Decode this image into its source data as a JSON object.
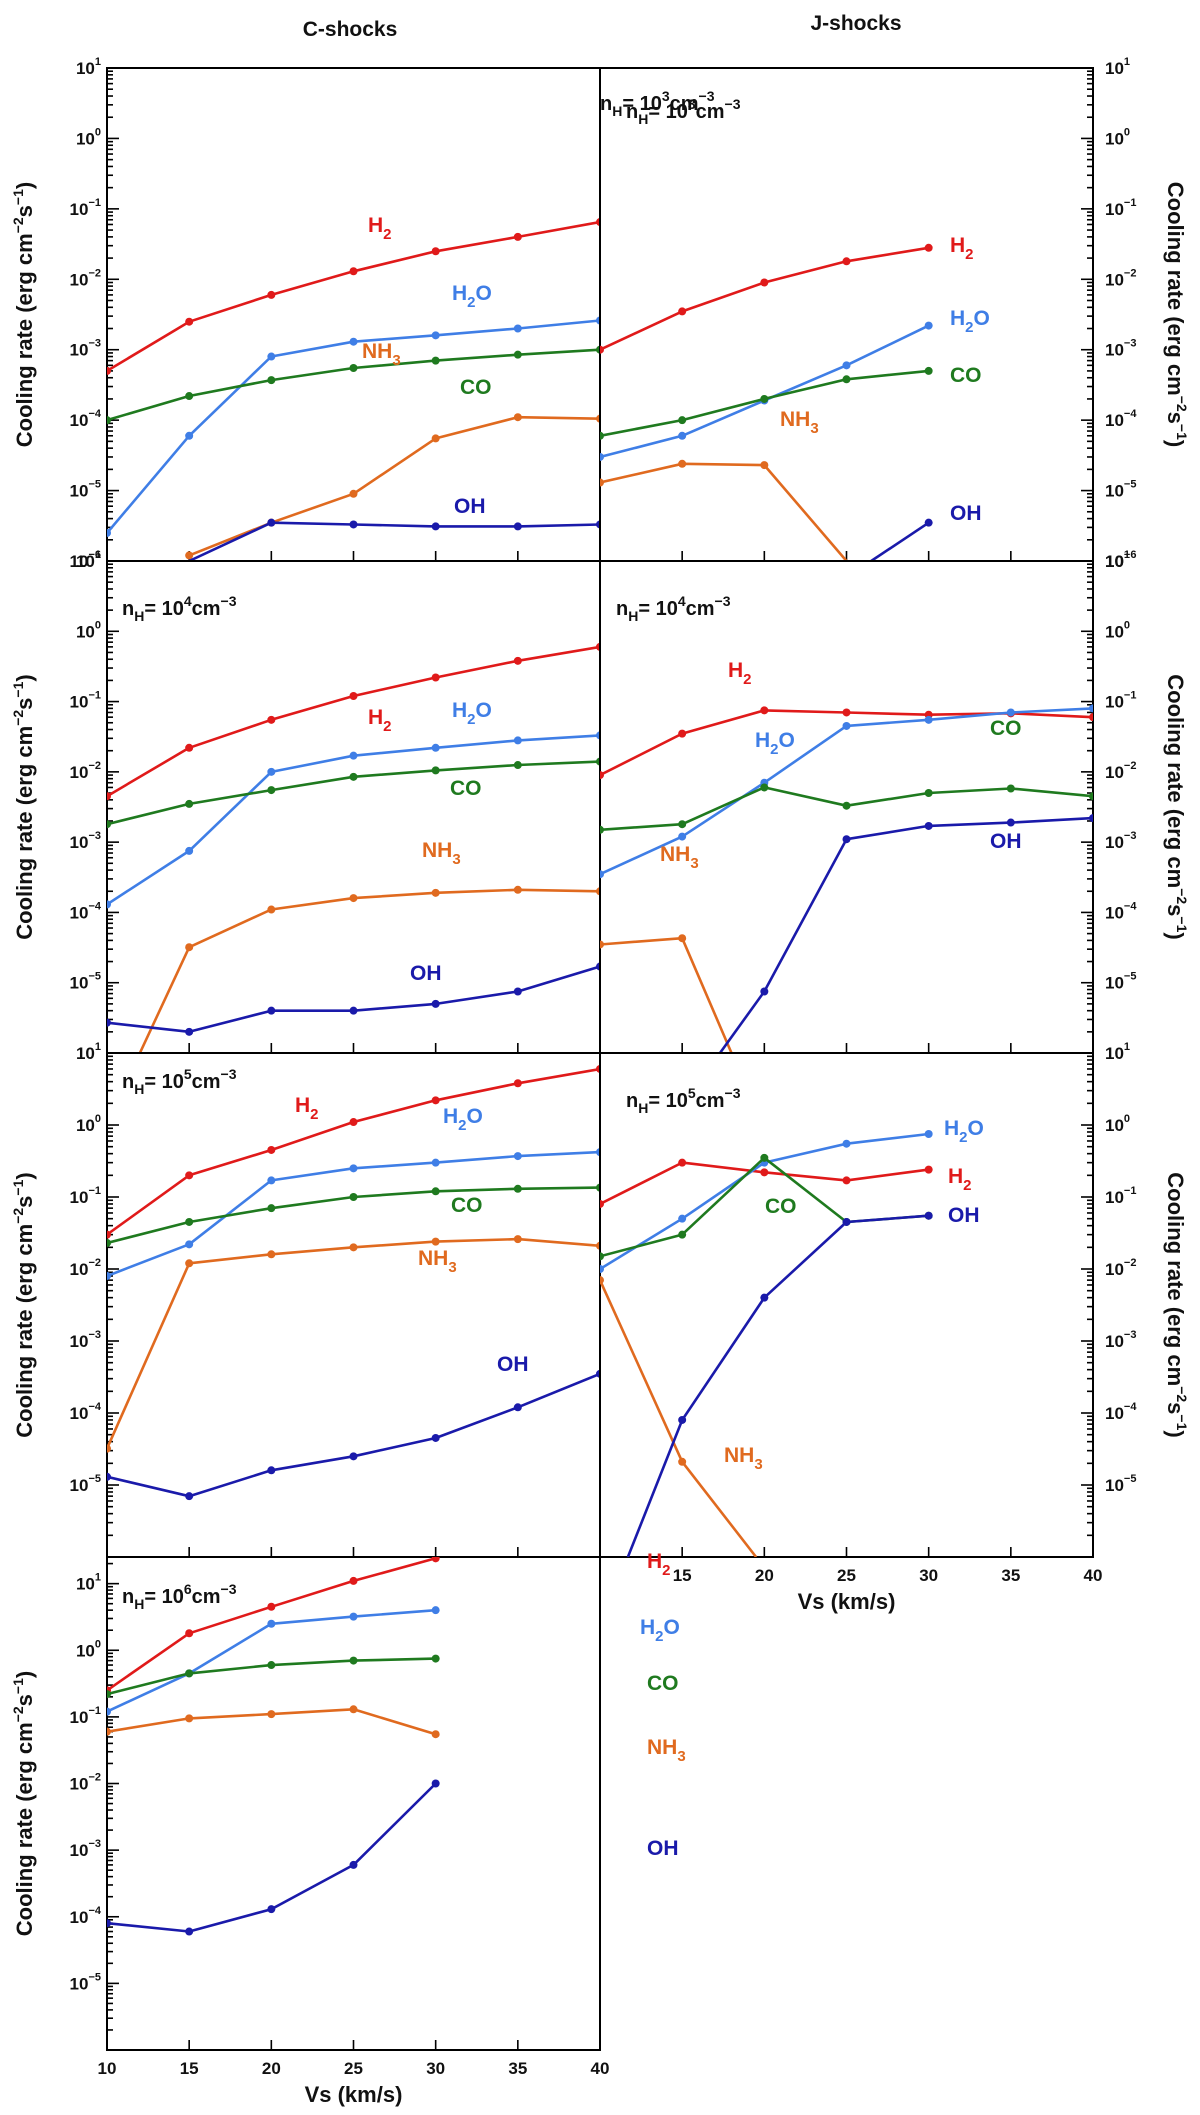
{
  "figure": {
    "columns": [
      "C-shocks",
      "J-shocks"
    ],
    "xlabel": "Vs (km/s)",
    "ylabel": "Cooling rate (erg cm-2 s-1)",
    "ylabel_parts": [
      "Cooling rate (erg cm",
      "-2",
      "s",
      "-1",
      ")"
    ],
    "y_tick_base": "10",
    "colors": {
      "H2": "#e01a1a",
      "H2O": "#3f7ee6",
      "CO": "#1f7a1f",
      "NH3": "#e06a1f",
      "OH": "#1a1aaa"
    }
  },
  "chart_data": [
    {
      "id": "c3",
      "type": "line",
      "column": "C-shocks",
      "density": {
        "pre": "n",
        "sub": "H",
        "eq": "= 10",
        "exp": "3",
        "unit": "cm",
        "unit_exp": "-3"
      },
      "xlim": [
        10,
        40
      ],
      "ylim_log10": [
        -6,
        1
      ],
      "x_ticks": [],
      "y_ticks_exp": [
        1,
        0,
        -1,
        -2,
        -3,
        -4,
        -5,
        -6
      ],
      "series": [
        {
          "name": "H2",
          "label": "H",
          "label_sub": "2",
          "x": [
            10,
            15,
            20,
            25,
            30,
            35,
            40
          ],
          "values": [
            0.0005,
            0.0025,
            0.006,
            0.013,
            0.025,
            0.04,
            0.065
          ]
        },
        {
          "name": "H2O",
          "label": "H",
          "label_sub": "2",
          "label_tail": "O",
          "x": [
            10,
            15,
            20,
            25,
            30,
            35,
            40
          ],
          "values": [
            2.5e-06,
            6e-05,
            0.0008,
            0.0013,
            0.0016,
            0.002,
            0.0026
          ]
        },
        {
          "name": "CO",
          "label": "CO",
          "x": [
            10,
            15,
            20,
            25,
            30,
            35,
            40
          ],
          "values": [
            0.0001,
            0.00022,
            0.00037,
            0.00055,
            0.0007,
            0.00085,
            0.001
          ]
        },
        {
          "name": "NH3",
          "label": "NH",
          "label_sub": "3",
          "x": [
            15,
            20,
            25,
            30,
            35,
            40
          ],
          "values": [
            1.2e-06,
            3.5e-06,
            9e-06,
            5.5e-05,
            0.00011,
            0.000105
          ]
        },
        {
          "name": "OH",
          "label": "OH",
          "x": [
            15,
            20,
            25,
            30,
            35,
            40
          ],
          "values": [
            1e-06,
            3.5e-06,
            3.3e-06,
            3.1e-06,
            3.1e-06,
            3.3e-06
          ]
        }
      ]
    },
    {
      "id": "j3",
      "type": "line",
      "column": "J-shocks",
      "density": {
        "pre": "n",
        "sub": "H",
        "eq": "= 10",
        "exp": "3",
        "unit": "cm",
        "unit_exp": "-3"
      },
      "xlim": [
        10,
        40
      ],
      "ylim_log10": [
        -6,
        1
      ],
      "x_ticks": [],
      "y_ticks_exp": [
        1,
        0,
        -1,
        -2,
        -3,
        -4,
        -5,
        -6
      ],
      "series": [
        {
          "name": "H2",
          "label": "H",
          "label_sub": "2",
          "x": [
            10,
            15,
            20,
            25,
            30
          ],
          "values": [
            0.001,
            0.0035,
            0.009,
            0.018,
            0.028
          ]
        },
        {
          "name": "H2O",
          "label": "H",
          "label_sub": "2",
          "label_tail": "O",
          "x": [
            10,
            15,
            20,
            25,
            30
          ],
          "values": [
            3e-05,
            6e-05,
            0.00019,
            0.0006,
            0.0022
          ]
        },
        {
          "name": "CO",
          "label": "CO",
          "x": [
            10,
            15,
            20,
            25,
            30
          ],
          "values": [
            6e-05,
            0.0001,
            0.0002,
            0.00038,
            0.0005
          ]
        },
        {
          "name": "NH3",
          "label": "NH",
          "label_sub": "3",
          "x": [
            10,
            15,
            20,
            25
          ],
          "values": [
            1.3e-05,
            2.4e-05,
            2.3e-05,
            1e-06
          ]
        },
        {
          "name": "OH",
          "label": "OH",
          "x": [
            26.5,
            30
          ],
          "values": [
            1e-06,
            3.5e-06
          ]
        }
      ]
    },
    {
      "id": "c4",
      "type": "line",
      "column": "C-shocks",
      "density": {
        "pre": "n",
        "sub": "H",
        "eq": "= 10",
        "exp": "4",
        "unit": "cm",
        "unit_exp": "-3"
      },
      "xlim": [
        10,
        40
      ],
      "ylim_log10": [
        -6,
        1
      ],
      "x_ticks": [],
      "y_ticks_exp": [
        1,
        0,
        -1,
        -2,
        -3,
        -4,
        -5
      ],
      "series": [
        {
          "name": "H2",
          "label": "H",
          "label_sub": "2",
          "x": [
            10,
            15,
            20,
            25,
            30,
            35,
            40
          ],
          "values": [
            0.0045,
            0.022,
            0.055,
            0.12,
            0.22,
            0.38,
            0.6
          ]
        },
        {
          "name": "H2O",
          "label": "H",
          "label_sub": "2",
          "label_tail": "O",
          "x": [
            10,
            15,
            20,
            25,
            30,
            35,
            40
          ],
          "values": [
            0.00013,
            0.00075,
            0.01,
            0.017,
            0.022,
            0.028,
            0.033
          ]
        },
        {
          "name": "CO",
          "label": "CO",
          "x": [
            10,
            15,
            20,
            25,
            30,
            35,
            40
          ],
          "values": [
            0.0018,
            0.0035,
            0.0055,
            0.0085,
            0.0105,
            0.0125,
            0.014
          ]
        },
        {
          "name": "NH3",
          "label": "NH",
          "label_sub": "3",
          "x": [
            12,
            15,
            20,
            25,
            30,
            35,
            40
          ],
          "values": [
            1e-06,
            3.2e-05,
            0.00011,
            0.00016,
            0.00019,
            0.00021,
            0.0002
          ]
        },
        {
          "name": "OH",
          "label": "OH",
          "x": [
            10,
            15,
            20,
            25,
            30,
            35,
            40
          ],
          "values": [
            2.7e-06,
            2e-06,
            4e-06,
            4e-06,
            5e-06,
            7.5e-06,
            1.7e-05
          ]
        }
      ]
    },
    {
      "id": "j4",
      "type": "line",
      "column": "J-shocks",
      "density": {
        "pre": "n",
        "sub": "H",
        "eq": "= 10",
        "exp": "4",
        "unit": "cm",
        "unit_exp": "-3"
      },
      "xlim": [
        10,
        40
      ],
      "ylim_log10": [
        -6,
        1
      ],
      "x_ticks": [],
      "y_ticks_exp": [
        1,
        0,
        -1,
        -2,
        -3,
        -4,
        -5
      ],
      "series": [
        {
          "name": "H2",
          "label": "H",
          "label_sub": "2",
          "x": [
            10,
            15,
            20,
            25,
            30,
            35,
            40
          ],
          "values": [
            0.009,
            0.035,
            0.075,
            0.07,
            0.065,
            0.068,
            0.06
          ]
        },
        {
          "name": "H2O",
          "label": "H",
          "label_sub": "2",
          "label_tail": "O",
          "x": [
            10,
            15,
            20,
            25,
            30,
            35,
            40
          ],
          "values": [
            0.00035,
            0.0012,
            0.007,
            0.045,
            0.055,
            0.07,
            0.08
          ]
        },
        {
          "name": "CO",
          "label": "CO",
          "x": [
            10,
            15,
            20,
            25,
            30,
            35,
            40
          ],
          "values": [
            0.0015,
            0.0018,
            0.006,
            0.0033,
            0.005,
            0.0058,
            0.0045
          ]
        },
        {
          "name": "NH3",
          "label": "NH",
          "label_sub": "3",
          "x": [
            10,
            15,
            18
          ],
          "values": [
            3.5e-05,
            4.3e-05,
            1e-06
          ]
        },
        {
          "name": "OH",
          "label": "OH",
          "x": [
            17.3,
            20,
            25,
            30,
            35,
            40
          ],
          "values": [
            1e-06,
            7.5e-06,
            0.0011,
            0.0017,
            0.0019,
            0.0022
          ]
        }
      ]
    },
    {
      "id": "c5",
      "type": "line",
      "column": "C-shocks",
      "density": {
        "pre": "n",
        "sub": "H",
        "eq": "= 10",
        "exp": "5",
        "unit": "cm",
        "unit_exp": "-3"
      },
      "xlim": [
        10,
        40
      ],
      "ylim_log10": [
        -6,
        1
      ],
      "x_ticks": [],
      "y_ticks_exp": [
        1,
        0,
        -1,
        -2,
        -3,
        -4,
        -5
      ],
      "series": [
        {
          "name": "H2",
          "label": "H",
          "label_sub": "2",
          "x": [
            10,
            15,
            20,
            25,
            30,
            35,
            40
          ],
          "values": [
            0.03,
            0.2,
            0.45,
            1.1,
            2.2,
            3.8,
            6
          ]
        },
        {
          "name": "H2O",
          "label": "H",
          "label_sub": "2",
          "label_tail": "O",
          "x": [
            10,
            15,
            20,
            25,
            30,
            35,
            40
          ],
          "values": [
            0.008,
            0.022,
            0.17,
            0.25,
            0.3,
            0.37,
            0.42
          ]
        },
        {
          "name": "CO",
          "label": "CO",
          "x": [
            10,
            15,
            20,
            25,
            30,
            35,
            40
          ],
          "values": [
            0.023,
            0.045,
            0.07,
            0.1,
            0.12,
            0.13,
            0.135
          ]
        },
        {
          "name": "NH3",
          "label": "NH",
          "label_sub": "3",
          "x": [
            10,
            15,
            20,
            25,
            30,
            35,
            40
          ],
          "values": [
            3.2e-05,
            0.012,
            0.016,
            0.02,
            0.024,
            0.026,
            0.021
          ]
        },
        {
          "name": "OH",
          "label": "OH",
          "x": [
            10,
            15,
            20,
            25,
            30,
            35,
            40
          ],
          "values": [
            1.3e-05,
            7e-06,
            1.6e-05,
            2.5e-05,
            4.5e-05,
            0.00012,
            0.00035
          ]
        }
      ]
    },
    {
      "id": "j5",
      "type": "line",
      "column": "J-shocks",
      "density": {
        "pre": "n",
        "sub": "H",
        "eq": "= 10",
        "exp": "5",
        "unit": "cm",
        "unit_exp": "-3"
      },
      "xlim": [
        10,
        40
      ],
      "ylim_log10": [
        -6,
        1
      ],
      "x_ticks": [
        15,
        20,
        25,
        30,
        35,
        40
      ],
      "y_ticks_exp": [
        1,
        0,
        -1,
        -2,
        -3,
        -4,
        -5
      ],
      "series": [
        {
          "name": "H2",
          "label": "H",
          "label_sub": "2",
          "x": [
            10,
            15,
            20,
            25,
            30
          ],
          "values": [
            0.08,
            0.3,
            0.22,
            0.17,
            0.24
          ]
        },
        {
          "name": "H2O",
          "label": "H",
          "label_sub": "2",
          "label_tail": "O",
          "x": [
            10,
            15,
            20,
            25,
            30
          ],
          "values": [
            0.01,
            0.05,
            0.3,
            0.55,
            0.75
          ]
        },
        {
          "name": "CO",
          "label": "CO",
          "x": [
            10,
            15,
            20,
            25,
            30
          ],
          "values": [
            0.015,
            0.03,
            0.35,
            0.045,
            0.055
          ]
        },
        {
          "name": "NH3",
          "label": "NH",
          "label_sub": "3",
          "x": [
            10,
            15,
            19.5
          ],
          "values": [
            0.007,
            2.1e-05,
            1e-06
          ]
        },
        {
          "name": "OH",
          "label": "OH",
          "x": [
            11.7,
            15,
            20,
            25,
            30
          ],
          "values": [
            1e-06,
            8e-05,
            0.004,
            0.045,
            0.055
          ]
        }
      ]
    },
    {
      "id": "c6",
      "type": "line",
      "column": "C-shocks",
      "density": {
        "pre": "n",
        "sub": "H",
        "eq": "= 10",
        "exp": "6",
        "unit": "cm",
        "unit_exp": "-3"
      },
      "xlim": [
        10,
        40
      ],
      "ylim_log10": [
        -6,
        1.4
      ],
      "x_ticks": [
        10,
        15,
        20,
        25,
        30,
        35,
        40
      ],
      "y_ticks_exp": [
        1,
        0,
        -1,
        -2,
        -3,
        -4,
        -5
      ],
      "series": [
        {
          "name": "H2",
          "label": "H",
          "label_sub": "2",
          "x": [
            10,
            15,
            20,
            25,
            30
          ],
          "values": [
            0.25,
            1.8,
            4.5,
            11,
            24
          ]
        },
        {
          "name": "H2O",
          "label": "H",
          "label_sub": "2",
          "label_tail": "O",
          "x": [
            10,
            15,
            20,
            25,
            30
          ],
          "values": [
            0.12,
            0.45,
            2.5,
            3.2,
            4
          ]
        },
        {
          "name": "CO",
          "label": "CO",
          "x": [
            10,
            15,
            20,
            25,
            30
          ],
          "values": [
            0.22,
            0.45,
            0.6,
            0.7,
            0.75
          ]
        },
        {
          "name": "NH3",
          "label": "NH",
          "label_sub": "3",
          "x": [
            10,
            15,
            20,
            25,
            30
          ],
          "values": [
            0.06,
            0.095,
            0.11,
            0.13,
            0.055
          ]
        },
        {
          "name": "OH",
          "label": "OH",
          "x": [
            10,
            15,
            20,
            25,
            30
          ],
          "values": [
            8e-05,
            6e-05,
            0.00013,
            0.0006,
            0.01
          ]
        }
      ]
    }
  ]
}
